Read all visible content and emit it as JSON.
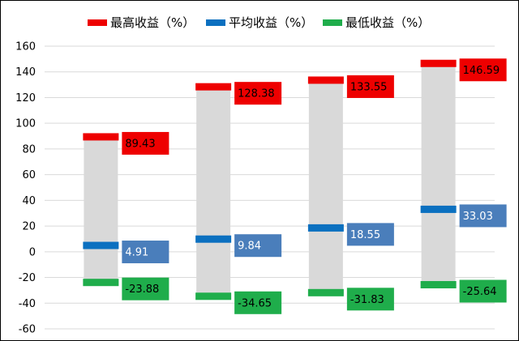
{
  "chart_data": {
    "type": "bar",
    "title": "",
    "xlabel": "",
    "ylabel": "",
    "ylim": [
      -60,
      160
    ],
    "yticks": [
      160,
      140,
      120,
      100,
      80,
      60,
      40,
      20,
      0,
      -20,
      -40,
      -60
    ],
    "grid": true,
    "legend_position": "top",
    "categories": [
      "",
      "",
      "",
      ""
    ],
    "series": [
      {
        "name": "最高收益（%）",
        "color": "#ee0000",
        "label_color": "#000000",
        "values": [
          89.43,
          128.38,
          133.55,
          146.59
        ]
      },
      {
        "name": "平均收益（%）",
        "color": "#0b70c0",
        "label_color": "#ffffff",
        "values": [
          4.91,
          9.84,
          18.55,
          33.03
        ]
      },
      {
        "name": "最低收益（%）",
        "color": "#1fad4b",
        "label_color": "#000000",
        "values": [
          -23.88,
          -34.65,
          -31.83,
          -25.64
        ]
      }
    ],
    "range_bar_color": "#d9d9d9",
    "label_box_colors": [
      "#ee0000",
      "#4a7ebb",
      "#1fad4b"
    ]
  }
}
